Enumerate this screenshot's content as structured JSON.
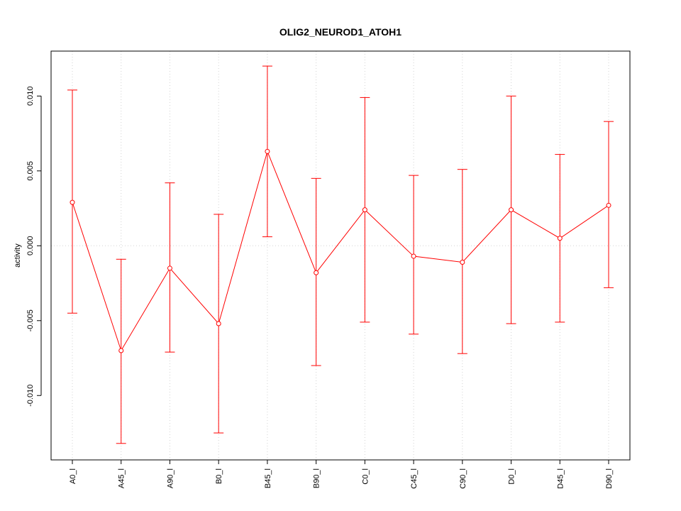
{
  "chart_data": {
    "type": "line",
    "title": "OLIG2_NEUROD1_ATOH1",
    "xlabel": "",
    "ylabel": "activity",
    "categories": [
      "A0_l",
      "A45_l",
      "A90_l",
      "B0_l",
      "B45_l",
      "B90_l",
      "C0_l",
      "C45_l",
      "C90_l",
      "D0_l",
      "D45_l",
      "D90_l"
    ],
    "series": [
      {
        "values": [
          0.0029,
          -0.007,
          -0.0015,
          -0.0052,
          0.0063,
          -0.0018,
          0.0024,
          -0.0007,
          -0.0011,
          0.0024,
          0.0005,
          0.0027
        ],
        "upper": [
          0.0104,
          -0.0009,
          0.0042,
          0.0021,
          0.012,
          0.0045,
          0.0099,
          0.0047,
          0.0051,
          0.01,
          0.0061,
          0.0083
        ],
        "lower": [
          -0.0045,
          -0.0132,
          -0.0071,
          -0.0125,
          0.0006,
          -0.008,
          -0.0051,
          -0.0059,
          -0.0072,
          -0.0052,
          -0.0051,
          -0.0028
        ]
      }
    ],
    "yticks": [
      -0.01,
      -0.005,
      0.0,
      0.005,
      0.01
    ],
    "ytick_labels": [
      "-0.010",
      "-0.005",
      "0.000",
      "0.005",
      "0.010"
    ],
    "ylim": [
      -0.0143,
      0.013
    ],
    "grid": true,
    "colors": {
      "series": "#ff0000",
      "grid": "#d3d3d3",
      "axis": "#000000"
    }
  }
}
